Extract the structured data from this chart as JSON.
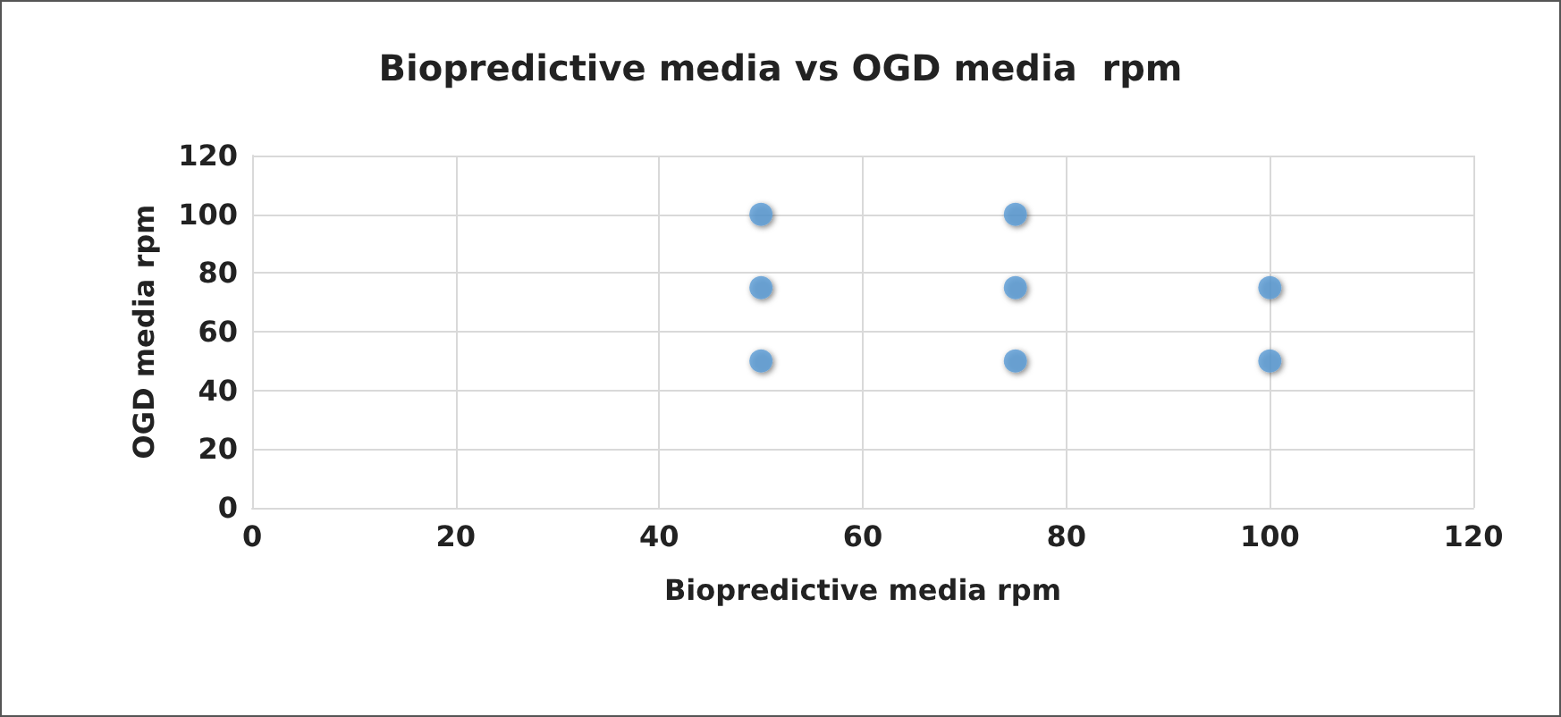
{
  "chart_data": {
    "type": "scatter",
    "title": "Biopredictive media vs OGD media  rpm",
    "xlabel": "Biopredictive media rpm",
    "ylabel": "OGD media rpm",
    "x": [
      50,
      50,
      50,
      75,
      75,
      75,
      100,
      100
    ],
    "series": [
      {
        "color": "#5b9bd5",
        "values": [
          100,
          75,
          50,
          100,
          75,
          50,
          75,
          50
        ]
      }
    ],
    "xlim": [
      0,
      120
    ],
    "xticks": [
      0,
      20,
      40,
      60,
      80,
      100,
      120
    ],
    "ylim": [
      0,
      120
    ],
    "yticks": [
      0,
      20,
      40,
      60,
      80,
      100,
      120
    ],
    "grid": true,
    "marker": "circle"
  }
}
